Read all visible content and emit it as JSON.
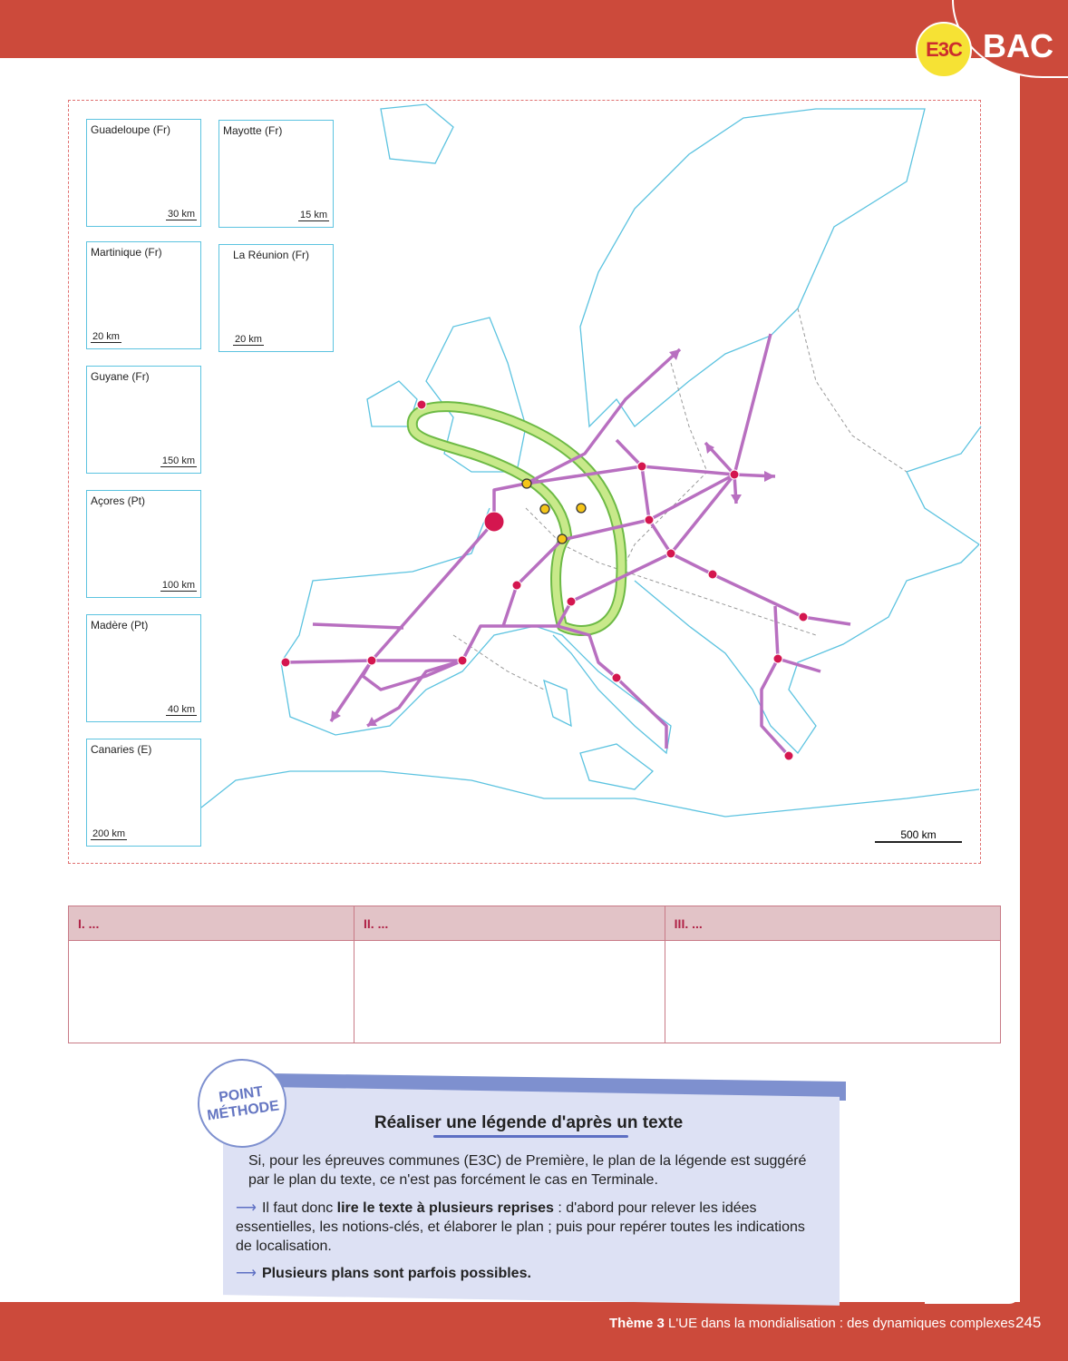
{
  "header": {
    "e3c_badge": "E3C",
    "bac_badge": "BAC",
    "accent": "#cc4a3b",
    "badge_yellow": "#f6e234"
  },
  "map": {
    "insets": [
      {
        "label": "Guadeloupe (Fr)",
        "scale": "30 km"
      },
      {
        "label": "Mayotte (Fr)",
        "scale": "15 km"
      },
      {
        "label": "Martinique (Fr)",
        "scale": "20 km"
      },
      {
        "label": "La Réunion (Fr)",
        "scale": "20 km"
      },
      {
        "label": "Guyane (Fr)",
        "scale": "150 km"
      },
      {
        "label": "Açores (Pt)",
        "scale": "100 km"
      },
      {
        "label": "Madère (Pt)",
        "scale": "40 km"
      },
      {
        "label": "Canaries (E)",
        "scale": "200 km"
      }
    ],
    "scale": "500 km",
    "colors": {
      "coast": "#5cc3e0",
      "route": "#b86fc0",
      "city": "#d4164f",
      "megalopolis": "#a6d96a",
      "yellow_node": "#f5c518"
    }
  },
  "legend_table": {
    "headers": [
      "I. ...",
      "II. ...",
      "III. ..."
    ]
  },
  "method": {
    "stamp_line1": "POINT",
    "stamp_line2": "MÉTHODE",
    "title": "Réaliser une légende d'après un texte",
    "intro": "Si, pour les épreuves communes (E3C) de Première, le plan de la légende est suggéré par le plan du texte, ce n'est pas forcément le cas en Terminale.",
    "point1_pre": "Il faut donc ",
    "point1_bold": "lire le texte à plusieurs reprises",
    "point1_post": " : d'abord pour relever les idées essentielles, les notions-clés, et élaborer le plan ; puis pour repérer toutes les indications de localisation.",
    "point2": "Plusieurs plans sont parfois possibles.",
    "arrow_glyph": "⟶"
  },
  "footer": {
    "theme": "Thème 3",
    "title": "L'UE dans la mondialisation : des dynamiques complexes",
    "page": "245"
  }
}
